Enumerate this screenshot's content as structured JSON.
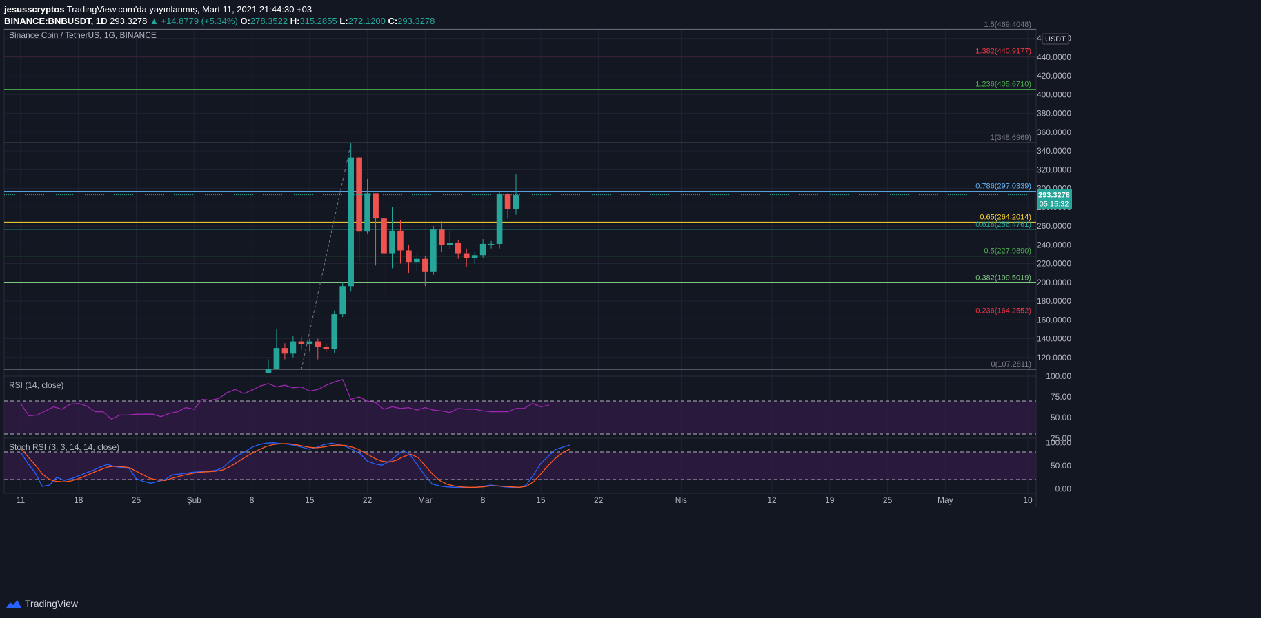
{
  "header": {
    "author": "jesusscryptos",
    "published": "TradingView.com'da yayınlanmış, Mart 11, 2021 21:44:30 +03",
    "symbol": "BINANCE:BNBUSDT, 1D",
    "last": "293.3278",
    "change": "▲ +14.8779 (+5.34%)",
    "o_label": "O:",
    "o": "278.3522",
    "h_label": "H:",
    "h": "315.2855",
    "l_label": "L:",
    "l": "272.1200",
    "c_label": "C:",
    "c": "293.3278"
  },
  "footer": {
    "brand": "TradingView"
  },
  "colors": {
    "background": "#131722",
    "grid": "#1f2333",
    "up": "#26a69a",
    "down": "#ef5350",
    "rsi": "#9c27b0",
    "stoch_k": "#2962ff",
    "stoch_d": "#ff5722",
    "band": "#311b46"
  },
  "chart_data": [
    {
      "type": "candlestick",
      "title": "Binance Coin / TetherUS, 1G, BINANCE",
      "y_unit": "USDT",
      "ylim": [
        100,
        470
      ],
      "y_ticks": [
        "120.0000",
        "140.0000",
        "160.0000",
        "180.0000",
        "200.0000",
        "220.0000",
        "240.0000",
        "260.0000",
        "280.0000",
        "300.0000",
        "320.0000",
        "340.0000",
        "360.0000",
        "380.0000",
        "400.0000",
        "420.0000",
        "440.0000",
        "460.0000"
      ],
      "x_ticks": [
        {
          "day": 0,
          "label": "11"
        },
        {
          "day": 7,
          "label": "18"
        },
        {
          "day": 14,
          "label": "25"
        },
        {
          "day": 21,
          "label": "Şub"
        },
        {
          "day": 28,
          "label": "8"
        },
        {
          "day": 35,
          "label": "15"
        },
        {
          "day": 42,
          "label": "22"
        },
        {
          "day": 49,
          "label": "Mar"
        },
        {
          "day": 56,
          "label": "8"
        },
        {
          "day": 63,
          "label": "15"
        },
        {
          "day": 70,
          "label": "22"
        },
        {
          "day": 80,
          "label": "Nis"
        },
        {
          "day": 91,
          "label": "12"
        },
        {
          "day": 98,
          "label": "19"
        },
        {
          "day": 105,
          "label": "25"
        },
        {
          "day": 112,
          "label": "May"
        },
        {
          "day": 122,
          "label": "10"
        }
      ],
      "x_range_days": [
        -2,
        123
      ],
      "candles_start_day": 30,
      "candles": [
        {
          "o": 103,
          "h": 118,
          "l": 103,
          "c": 108
        },
        {
          "o": 108,
          "h": 150,
          "l": 108,
          "c": 130
        },
        {
          "o": 130,
          "h": 135,
          "l": 118,
          "c": 124
        },
        {
          "o": 124,
          "h": 143,
          "l": 120,
          "c": 137
        },
        {
          "o": 137,
          "h": 142,
          "l": 128,
          "c": 134
        },
        {
          "o": 134,
          "h": 140,
          "l": 126,
          "c": 137
        },
        {
          "o": 137,
          "h": 140,
          "l": 118,
          "c": 131
        },
        {
          "o": 131,
          "h": 135,
          "l": 126,
          "c": 129
        },
        {
          "o": 129,
          "h": 170,
          "l": 125,
          "c": 166
        },
        {
          "o": 166,
          "h": 200,
          "l": 163,
          "c": 196
        },
        {
          "o": 196,
          "h": 348,
          "l": 190,
          "c": 333
        },
        {
          "o": 333,
          "h": 334,
          "l": 222,
          "c": 254
        },
        {
          "o": 254,
          "h": 310,
          "l": 252,
          "c": 295
        },
        {
          "o": 295,
          "h": 295,
          "l": 218,
          "c": 268
        },
        {
          "o": 268,
          "h": 272,
          "l": 185,
          "c": 231
        },
        {
          "o": 231,
          "h": 280,
          "l": 215,
          "c": 255
        },
        {
          "o": 255,
          "h": 266,
          "l": 220,
          "c": 234
        },
        {
          "o": 234,
          "h": 240,
          "l": 210,
          "c": 221
        },
        {
          "o": 221,
          "h": 230,
          "l": 212,
          "c": 225
        },
        {
          "o": 225,
          "h": 228,
          "l": 196,
          "c": 211
        },
        {
          "o": 211,
          "h": 260,
          "l": 208,
          "c": 256
        },
        {
          "o": 256,
          "h": 265,
          "l": 232,
          "c": 240
        },
        {
          "o": 240,
          "h": 255,
          "l": 236,
          "c": 242
        },
        {
          "o": 242,
          "h": 245,
          "l": 225,
          "c": 231
        },
        {
          "o": 231,
          "h": 236,
          "l": 216,
          "c": 226
        },
        {
          "o": 226,
          "h": 232,
          "l": 220,
          "c": 229
        },
        {
          "o": 229,
          "h": 246,
          "l": 226,
          "c": 241
        },
        {
          "o": 241,
          "h": 244,
          "l": 236,
          "c": 241
        },
        {
          "o": 241,
          "h": 296,
          "l": 236,
          "c": 294
        },
        {
          "o": 294,
          "h": 295,
          "l": 268,
          "c": 278
        },
        {
          "o": 278,
          "h": 315,
          "l": 272,
          "c": 293
        }
      ],
      "current_price": {
        "value": 293.3278,
        "label": "293.3278",
        "timer": "05:15:32"
      },
      "fib_levels": [
        {
          "value": 469.4048,
          "label": "1.5(469.4048)",
          "color": "#787b86"
        },
        {
          "value": 440.9177,
          "label": "1.382(440.9177)",
          "color": "#f23645"
        },
        {
          "value": 405.671,
          "label": "1.236(405.6710)",
          "color": "#4caf50"
        },
        {
          "value": 348.6969,
          "label": "1(348.6969)",
          "color": "#787b86"
        },
        {
          "value": 297.0339,
          "label": "0.786(297.0339)",
          "color": "#64b5f6"
        },
        {
          "value": 264.2014,
          "label": "0.65(264.2014)",
          "color": "#fdd835"
        },
        {
          "value": 256.4761,
          "label": "0.618(256.4761)",
          "color": "#26a69a"
        },
        {
          "value": 227.989,
          "label": "0.5(227.9890)",
          "color": "#4caf50"
        },
        {
          "value": 199.5019,
          "label": "0.382(199.5019)",
          "color": "#81c784"
        },
        {
          "value": 164.2552,
          "label": "0.236(164.2552)",
          "color": "#f23645"
        },
        {
          "value": 107.2811,
          "label": "0(107.2811)",
          "color": "#787b86"
        }
      ],
      "trend_line": {
        "from_day": 34,
        "from_value": 107,
        "to_day": 40,
        "to_value": 348
      }
    },
    {
      "type": "line",
      "title": "RSI (14, close)",
      "ylim": [
        25,
        100
      ],
      "y_ticks": [
        "25.00",
        "50.00",
        "75.00",
        "100.00"
      ],
      "band": [
        30,
        70
      ],
      "start_day": 0,
      "series": [
        {
          "values": [
            67,
            52,
            53,
            58,
            63,
            60,
            66,
            67,
            64,
            57,
            57,
            48,
            53,
            53,
            54,
            54,
            54,
            51,
            55,
            57,
            62,
            60,
            72,
            71,
            73,
            80,
            84,
            79,
            83,
            88,
            91,
            87,
            89,
            86,
            87,
            82,
            84,
            89,
            93,
            96,
            72,
            75,
            70,
            68,
            60,
            63,
            61,
            62,
            59,
            62,
            59,
            58,
            56,
            61,
            60,
            60,
            58,
            57,
            57,
            57,
            61,
            61,
            67,
            63,
            65
          ]
        }
      ]
    },
    {
      "type": "line",
      "title": "Stoch RSI (3, 3, 14, 14, close)",
      "ylim": [
        -10,
        110
      ],
      "y_ticks": [
        "0.00",
        "50.00",
        "100.00"
      ],
      "band": [
        20,
        80
      ],
      "start_day": 0,
      "series": [
        {
          "values": [
            80,
            55,
            35,
            5,
            8,
            25,
            18,
            22,
            28,
            34,
            40,
            47,
            53,
            48,
            46,
            44,
            22,
            16,
            12,
            16,
            20,
            30,
            32,
            34,
            36,
            37,
            38,
            40,
            46,
            60,
            72,
            80,
            90,
            96,
            99,
            100,
            98,
            97,
            94,
            90,
            86,
            90,
            96,
            99,
            96,
            92,
            85,
            76,
            60,
            54,
            51,
            59,
            72,
            84,
            72,
            50,
            28,
            10,
            6,
            4,
            3,
            2,
            2,
            3,
            5,
            8,
            6,
            4,
            3,
            2,
            8,
            30,
            55,
            70,
            85,
            90,
            95
          ]
        },
        {
          "values": [
            88,
            70,
            52,
            32,
            20,
            16,
            15,
            17,
            22,
            28,
            35,
            41,
            47,
            49,
            48,
            46,
            38,
            30,
            22,
            19,
            18,
            23,
            27,
            31,
            34,
            36,
            37,
            38,
            41,
            48,
            58,
            68,
            77,
            85,
            92,
            96,
            98,
            98,
            96,
            93,
            90,
            89,
            91,
            94,
            95,
            94,
            90,
            84,
            75,
            66,
            60,
            58,
            62,
            70,
            75,
            68,
            50,
            32,
            18,
            10,
            6,
            4,
            3,
            3,
            4,
            6,
            6,
            5,
            4,
            3,
            5,
            15,
            32,
            50,
            66,
            78,
            86
          ]
        }
      ]
    }
  ]
}
